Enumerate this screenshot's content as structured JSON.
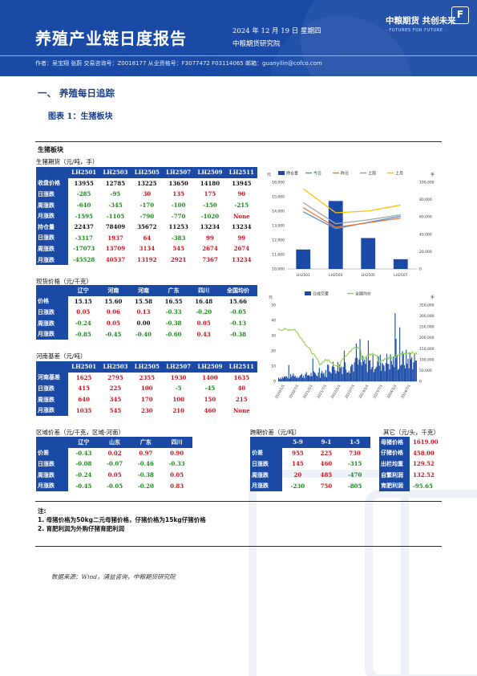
{
  "header": {
    "title": "养殖产业链日度报告",
    "date": "2024 年 12 月 19 日 星期四",
    "org": "中粮期货研究院",
    "logo": "中粮期货  共创未来",
    "logo_en": "· FUTURES FOR FUTURE ·",
    "logo_box": "F",
    "authors": "作者：吴宝翔  张蔚  交易咨询号：Z0018177 从业资格号：F3077472 F03114065  邮箱：guanyilin@cofco.com"
  },
  "section_title": "一、  养殖每日追踪",
  "figure_title": "图表 1：生猪板块",
  "block_title": "生猪板块",
  "futures": {
    "title": "生猪期货（元/吨，手）",
    "columns": [
      "",
      "LH2501",
      "LH2503",
      "LH2505",
      "LH2507",
      "LH2509",
      "LH2511"
    ],
    "rows": [
      {
        "label": "收盘价格",
        "values": [
          "13955",
          "12785",
          "13225",
          "13650",
          "14180",
          "13945"
        ],
        "tone": [
          "b",
          "b",
          "b",
          "b",
          "b",
          "b"
        ]
      },
      {
        "label": "日涨跌",
        "values": [
          "-285",
          "-95",
          "30",
          "135",
          "175",
          "90"
        ],
        "tone": [
          "n",
          "n",
          "p",
          "p",
          "p",
          "p"
        ]
      },
      {
        "label": "周涨跌",
        "values": [
          "-640",
          "-345",
          "-170",
          "-100",
          "-150",
          "-215"
        ],
        "tone": [
          "n",
          "n",
          "n",
          "n",
          "n",
          "n"
        ]
      },
      {
        "label": "月涨跌",
        "values": [
          "-1595",
          "-1105",
          "-790",
          "-770",
          "-1020",
          "None"
        ],
        "tone": [
          "n",
          "n",
          "n",
          "n",
          "n",
          "p"
        ]
      },
      {
        "label": "持仓量",
        "values": [
          "22437",
          "78409",
          "35672",
          "11253",
          "13234",
          "13234"
        ],
        "tone": [
          "b",
          "b",
          "b",
          "b",
          "b",
          "b"
        ]
      },
      {
        "label": "日涨跌",
        "values": [
          "-3317",
          "1937",
          "64",
          "-383",
          "99",
          "99"
        ],
        "tone": [
          "n",
          "p",
          "p",
          "n",
          "p",
          "p"
        ]
      },
      {
        "label": "周涨跌",
        "values": [
          "-17073",
          "13709",
          "3134",
          "545",
          "2674",
          "2674"
        ],
        "tone": [
          "n",
          "p",
          "p",
          "p",
          "p",
          "p"
        ]
      },
      {
        "label": "月涨跌",
        "values": [
          "-45528",
          "40537",
          "13192",
          "2921",
          "7367",
          "13234"
        ],
        "tone": [
          "n",
          "p",
          "p",
          "p",
          "p",
          "p"
        ]
      }
    ]
  },
  "spot": {
    "title": "现货价格（元/千克）",
    "columns": [
      "",
      "辽宁",
      "河南",
      "河南",
      "广东",
      "四川",
      "全国均价"
    ],
    "rows": [
      {
        "label": "价格",
        "values": [
          "15.15",
          "15.60",
          "15.58",
          "16.55",
          "16.48",
          "15.66"
        ],
        "tone": [
          "b",
          "b",
          "b",
          "b",
          "b",
          "b"
        ]
      },
      {
        "label": "日涨跌",
        "values": [
          "0.05",
          "0.06",
          "0.13",
          "-0.33",
          "-0.20",
          "-0.05"
        ],
        "tone": [
          "p",
          "p",
          "p",
          "n",
          "n",
          "n"
        ]
      },
      {
        "label": "周涨跌",
        "values": [
          "-0.24",
          "0.05",
          "0.00",
          "-0.38",
          "0.05",
          "-0.13"
        ],
        "tone": [
          "n",
          "p",
          "b",
          "n",
          "p",
          "n"
        ]
      },
      {
        "label": "月涨跌",
        "values": [
          "-0.85",
          "-0.45",
          "-0.40",
          "-0.60",
          "0.43",
          "-0.38"
        ],
        "tone": [
          "n",
          "n",
          "n",
          "n",
          "p",
          "n"
        ]
      }
    ]
  },
  "basis": {
    "title": "河南基差（元/吨）",
    "columns": [
      "",
      "LH2501",
      "LH2503",
      "LH2505",
      "LH2507",
      "LH2509",
      "LH2511"
    ],
    "rows": [
      {
        "label": "河南基差",
        "values": [
          "1625",
          "2795",
          "2355",
          "1930",
          "1400",
          "1635"
        ],
        "tone": [
          "p",
          "p",
          "p",
          "p",
          "p",
          "p"
        ]
      },
      {
        "label": "日涨跌",
        "values": [
          "415",
          "225",
          "100",
          "-5",
          "-45",
          "40"
        ],
        "tone": [
          "p",
          "p",
          "p",
          "n",
          "n",
          "p"
        ]
      },
      {
        "label": "周涨跌",
        "values": [
          "640",
          "345",
          "170",
          "100",
          "150",
          "215"
        ],
        "tone": [
          "p",
          "p",
          "p",
          "p",
          "p",
          "p"
        ]
      },
      {
        "label": "月涨跌",
        "values": [
          "1035",
          "545",
          "230",
          "210",
          "460",
          "None"
        ],
        "tone": [
          "p",
          "p",
          "p",
          "p",
          "p",
          "p"
        ]
      }
    ]
  },
  "region": {
    "title": "区域价差（元/千克，区域-河南）",
    "columns": [
      "",
      "辽宁",
      "山东",
      "广东",
      "四川"
    ],
    "rows": [
      {
        "label": "价差",
        "values": [
          "-0.43",
          "0.02",
          "0.97",
          "0.90"
        ],
        "tone": [
          "n",
          "p",
          "p",
          "p"
        ]
      },
      {
        "label": "日涨跌",
        "values": [
          "-0.08",
          "-0.07",
          "-0.46",
          "-0.33"
        ],
        "tone": [
          "n",
          "n",
          "n",
          "n"
        ]
      },
      {
        "label": "周涨跌",
        "values": [
          "-0.24",
          "0.05",
          "-0.38",
          "0.05"
        ],
        "tone": [
          "n",
          "p",
          "n",
          "p"
        ]
      },
      {
        "label": "月涨跌",
        "values": [
          "-0.45",
          "-0.05",
          "-0.20",
          "0.83"
        ],
        "tone": [
          "n",
          "n",
          "n",
          "p"
        ]
      }
    ]
  },
  "spread": {
    "title": "跨期价差（元/吨）",
    "columns": [
      "",
      "5-9",
      "9-1",
      "1-5"
    ],
    "rows": [
      {
        "label": "价差",
        "values": [
          "955",
          "225",
          "730"
        ],
        "tone": [
          "p",
          "p",
          "p"
        ]
      },
      {
        "label": "日涨跌",
        "values": [
          "145",
          "460",
          "-315"
        ],
        "tone": [
          "p",
          "p",
          "n"
        ]
      },
      {
        "label": "周涨跌",
        "values": [
          "20",
          "485",
          "-470"
        ],
        "tone": [
          "p",
          "p",
          "n"
        ]
      },
      {
        "label": "月涨跌",
        "values": [
          "-230",
          "750",
          "-805"
        ],
        "tone": [
          "n",
          "p",
          "n"
        ]
      }
    ]
  },
  "other": {
    "title": "其它（元/头，千克）",
    "rows": [
      {
        "label": "母猪价格",
        "value": "1619.00",
        "tone": "p"
      },
      {
        "label": "仔猪价格",
        "value": "458.00",
        "tone": "p"
      },
      {
        "label": "出栏均重",
        "value": "129.52",
        "tone": "p"
      },
      {
        "label": "自繁利润",
        "value": "132.52",
        "tone": "p"
      },
      {
        "label": "育肥利润",
        "value": "-95.65",
        "tone": "n"
      }
    ]
  },
  "notes": {
    "title": "注:",
    "items": [
      "1. 母猪价格为50kg二元母猪价格，仔猪价格为15kg仔猪价格",
      "2. 育肥利润为外购仔猪育肥利润"
    ]
  },
  "source": "数据来源：Wind，涌益咨询，中粮期货研究院",
  "chart_data": [
    {
      "type": "bar",
      "categories": [
        "LH2501",
        "LH2503",
        "LH2505",
        "LH2507"
      ],
      "series": [
        {
          "name": "持仓量",
          "values": [
            22437,
            78409,
            35672,
            11253
          ],
          "axis": "right"
        },
        {
          "name": "今日",
          "values": [
            13955,
            12785,
            13225,
            13650
          ],
          "axis": "left"
        },
        {
          "name": "昨日",
          "values": [
            14240,
            12880,
            13195,
            13515
          ],
          "axis": "left"
        },
        {
          "name": "上周",
          "values": [
            14595,
            13130,
            13395,
            13750
          ],
          "axis": "left"
        },
        {
          "name": "上月",
          "values": [
            15550,
            13890,
            14015,
            14420
          ],
          "axis": "left"
        }
      ],
      "y_left_ticks": [
        "10,000",
        "11,000",
        "12,000",
        "13,000",
        "14,000",
        "15,000",
        "16,000"
      ],
      "y_left_range": [
        10000,
        16000
      ],
      "y_right_ticks": [
        "0",
        "20,000",
        "40,000",
        "60,000",
        "80,000",
        "100,000"
      ],
      "y_right_range": [
        0,
        100000
      ],
      "ylabel_left": "元",
      "ylabel_right": "手",
      "colors": {
        "持仓量": "#1a4aa6",
        "今日": "#5b8fd9",
        "昨日": "#ed7d31",
        "上周": "#a5a5a5",
        "上月": "#ffc000"
      }
    },
    {
      "type": "line",
      "series": [
        {
          "name": "日成交量",
          "axis": "right",
          "style": "bar"
        },
        {
          "name": "全国均价",
          "axis": "left"
        }
      ],
      "x_ticks": [
        "2020/1/1",
        "2020/7/1",
        "2021/1/1",
        "2021/7/1",
        "2022/1/1",
        "2022/7/1",
        "2023/1/1",
        "2023/7/1",
        "2024/1/1",
        "2024/7/1"
      ],
      "y_left_ticks": [
        "0",
        "10",
        "20",
        "30",
        "40",
        "50"
      ],
      "y_left_range": [
        0,
        50
      ],
      "y_right_ticks": [
        "0",
        "50,000",
        "100,000",
        "150,000",
        "200,000",
        "250,000",
        "300,000",
        "350,000"
      ],
      "y_right_range": [
        0,
        350000
      ],
      "ylabel_left": "元",
      "ylabel_right": "手",
      "colors": {
        "日成交量": "#1a4aa6",
        "全国均价": "#92d050"
      }
    }
  ]
}
